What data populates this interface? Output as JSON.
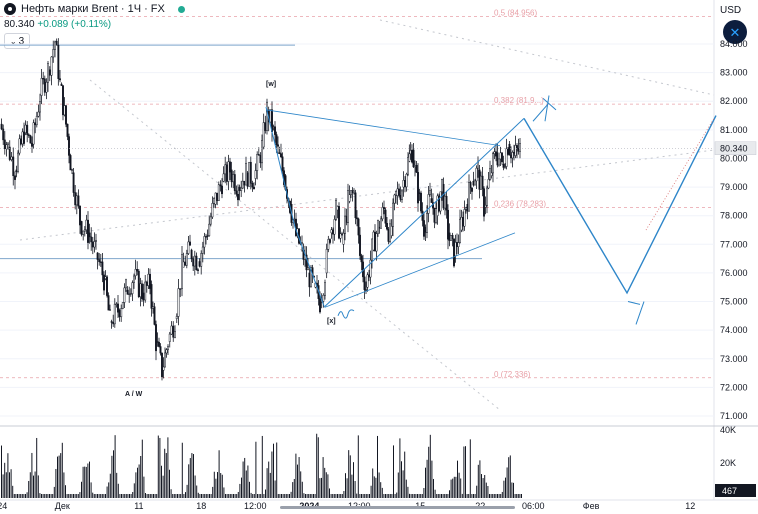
{
  "header": {
    "symbol": "Нефть марки Brent · 1Ч · FX",
    "price": "80.340",
    "change": "+0.089 (+0.11%)",
    "interval_count": "3",
    "currency": "USD"
  },
  "colors": {
    "candle": "#131722",
    "wave_line": "#2e86c9",
    "fib_level": "#e8a1a8",
    "grid": "#f0f3fa",
    "price_tag_bg": "#e8eaed"
  },
  "icons": [
    "chevron-down-icon",
    "wave-logo-icon",
    "crosshair-icon"
  ],
  "chart_data": {
    "type": "candlestick",
    "price_axis": {
      "labels": [
        "84.000",
        "83.000",
        "82.000",
        "81.000",
        "80.000",
        "79.000",
        "78.000",
        "77.000",
        "76.000",
        "75.000",
        "74.000",
        "73.000",
        "72.000",
        "71.000"
      ],
      "ylim": [
        70.6,
        84.6
      ],
      "last_price_label": "80.340",
      "last_price": 80.34
    },
    "time_axis": {
      "labels": [
        "24",
        "Дек",
        "11",
        "18",
        "12:00",
        "2024",
        "12:00",
        "15",
        "22",
        "06:00",
        "Фев",
        "12"
      ]
    },
    "volume_axis": {
      "labels": [
        "40K",
        "20K"
      ],
      "last_label": "467"
    },
    "wave_labels": [
      "[w]",
      "[x]",
      "A / W"
    ],
    "fib_levels": [
      {
        "label": "0.5 (84.956)",
        "value": 84.956
      },
      {
        "label": "0.382 (81.9...)",
        "value": 81.9
      },
      {
        "label": "0.236 (78.283)",
        "value": 78.283
      },
      {
        "label": "0 (72.336)",
        "value": 72.336
      }
    ],
    "price_path": [
      {
        "x": 0,
        "price": 81.2
      },
      {
        "x": 8,
        "price": 80.4
      },
      {
        "x": 15,
        "price": 79.6
      },
      {
        "x": 24,
        "price": 80.9
      },
      {
        "x": 32,
        "price": 80.5
      },
      {
        "x": 40,
        "price": 82.2
      },
      {
        "x": 48,
        "price": 83.1
      },
      {
        "x": 55,
        "price": 84.1
      },
      {
        "x": 60,
        "price": 82.6
      },
      {
        "x": 66,
        "price": 81.2
      },
      {
        "x": 72,
        "price": 79.5
      },
      {
        "x": 80,
        "price": 77.8
      },
      {
        "x": 88,
        "price": 77.4
      },
      {
        "x": 96,
        "price": 76.7
      },
      {
        "x": 104,
        "price": 75.8
      },
      {
        "x": 110,
        "price": 74.3
      },
      {
        "x": 118,
        "price": 74.7
      },
      {
        "x": 126,
        "price": 75.4
      },
      {
        "x": 134,
        "price": 75.9
      },
      {
        "x": 142,
        "price": 75.3
      },
      {
        "x": 150,
        "price": 75.6
      },
      {
        "x": 156,
        "price": 73.6
      },
      {
        "x": 162,
        "price": 72.6
      },
      {
        "x": 168,
        "price": 73.6
      },
      {
        "x": 175,
        "price": 74.4
      },
      {
        "x": 182,
        "price": 76.2
      },
      {
        "x": 190,
        "price": 76.8
      },
      {
        "x": 198,
        "price": 76.4
      },
      {
        "x": 206,
        "price": 77.3
      },
      {
        "x": 214,
        "price": 78.4
      },
      {
        "x": 222,
        "price": 79.2
      },
      {
        "x": 230,
        "price": 79.6
      },
      {
        "x": 238,
        "price": 79.0
      },
      {
        "x": 246,
        "price": 79.5
      },
      {
        "x": 254,
        "price": 79.3
      },
      {
        "x": 262,
        "price": 80.4
      },
      {
        "x": 267,
        "price": 81.7
      },
      {
        "x": 272,
        "price": 81.1
      },
      {
        "x": 278,
        "price": 80.2
      },
      {
        "x": 284,
        "price": 79.4
      },
      {
        "x": 290,
        "price": 78.4
      },
      {
        "x": 296,
        "price": 77.3
      },
      {
        "x": 302,
        "price": 76.8
      },
      {
        "x": 308,
        "price": 76.0
      },
      {
        "x": 314,
        "price": 75.5
      },
      {
        "x": 320,
        "price": 75.0
      },
      {
        "x": 325,
        "price": 76.0
      },
      {
        "x": 330,
        "price": 77.4
      },
      {
        "x": 336,
        "price": 78.2
      },
      {
        "x": 342,
        "price": 77.0
      },
      {
        "x": 348,
        "price": 78.5
      },
      {
        "x": 354,
        "price": 78.8
      },
      {
        "x": 360,
        "price": 76.6
      },
      {
        "x": 366,
        "price": 75.5
      },
      {
        "x": 372,
        "price": 76.8
      },
      {
        "x": 378,
        "price": 77.6
      },
      {
        "x": 384,
        "price": 78.2
      },
      {
        "x": 390,
        "price": 77.3
      },
      {
        "x": 396,
        "price": 78.7
      },
      {
        "x": 402,
        "price": 79.0
      },
      {
        "x": 408,
        "price": 79.9
      },
      {
        "x": 412,
        "price": 80.3
      },
      {
        "x": 418,
        "price": 78.8
      },
      {
        "x": 424,
        "price": 77.6
      },
      {
        "x": 430,
        "price": 78.6
      },
      {
        "x": 436,
        "price": 78.0
      },
      {
        "x": 442,
        "price": 79.1
      },
      {
        "x": 448,
        "price": 77.4
      },
      {
        "x": 454,
        "price": 76.6
      },
      {
        "x": 460,
        "price": 77.5
      },
      {
        "x": 466,
        "price": 78.4
      },
      {
        "x": 472,
        "price": 79.2
      },
      {
        "x": 478,
        "price": 79.6
      },
      {
        "x": 484,
        "price": 78.3
      },
      {
        "x": 490,
        "price": 79.4
      },
      {
        "x": 496,
        "price": 80.2
      },
      {
        "x": 502,
        "price": 79.8
      },
      {
        "x": 508,
        "price": 80.5
      },
      {
        "x": 514,
        "price": 80.1
      },
      {
        "x": 520,
        "price": 80.34
      }
    ]
  }
}
